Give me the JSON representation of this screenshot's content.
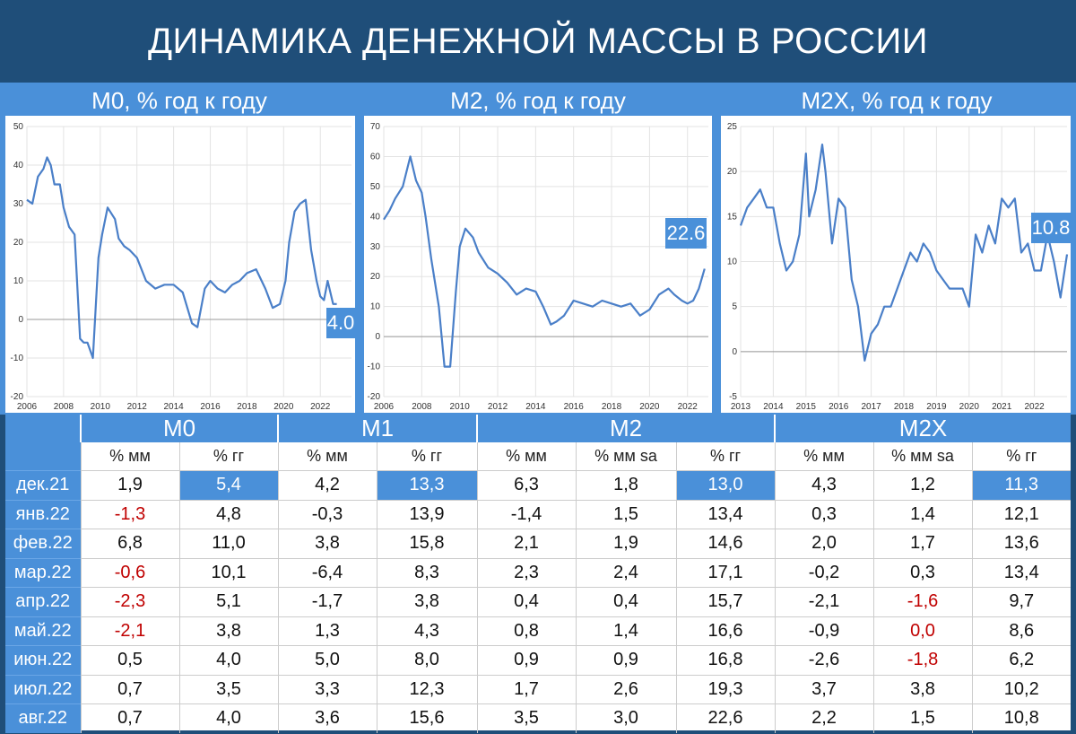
{
  "title": "ДИНАМИКА ДЕНЕЖНОЙ МАССЫ В РОССИИ",
  "colors": {
    "background": "#1f4e79",
    "accent": "#4a90d9",
    "line": "#4a7fc8",
    "negative": "#c00000"
  },
  "chart_data": [
    {
      "type": "line",
      "title": "M0, % год к году",
      "ylim": [
        -20,
        50
      ],
      "yticks": [
        -20,
        -10,
        0,
        10,
        20,
        30,
        40,
        50
      ],
      "xlim": [
        2006,
        2023.7
      ],
      "xticks": [
        2006,
        2008,
        2010,
        2012,
        2014,
        2016,
        2018,
        2020,
        2022
      ],
      "end_label": "4.0",
      "x": [
        2006.0,
        2006.3,
        2006.6,
        2006.9,
        2007.1,
        2007.3,
        2007.5,
        2007.8,
        2008.0,
        2008.3,
        2008.6,
        2008.9,
        2009.1,
        2009.3,
        2009.6,
        2009.9,
        2010.1,
        2010.4,
        2010.8,
        2011.0,
        2011.3,
        2011.6,
        2012.0,
        2012.5,
        2013.0,
        2013.5,
        2014.0,
        2014.5,
        2015.0,
        2015.3,
        2015.7,
        2016.0,
        2016.4,
        2016.8,
        2017.2,
        2017.6,
        2018.0,
        2018.5,
        2019.0,
        2019.4,
        2019.8,
        2020.1,
        2020.3,
        2020.6,
        2020.9,
        2021.2,
        2021.5,
        2021.8,
        2022.0,
        2022.2,
        2022.4,
        2022.7,
        2022.9
      ],
      "y": [
        31,
        30,
        37,
        39,
        42,
        40,
        35,
        35,
        29,
        24,
        22,
        -5,
        -6,
        -6,
        -10,
        16,
        22,
        29,
        26,
        21,
        19,
        18,
        16,
        10,
        8,
        9,
        9,
        7,
        -1,
        -2,
        8,
        10,
        8,
        7,
        9,
        10,
        12,
        13,
        8,
        3,
        4,
        10,
        20,
        28,
        30,
        31,
        18,
        10,
        6,
        5,
        10,
        4,
        4
      ]
    },
    {
      "type": "line",
      "title": "M2, % год к году",
      "ylim": [
        -20,
        70
      ],
      "yticks": [
        -20,
        -10,
        0,
        10,
        20,
        30,
        40,
        50,
        60,
        70
      ],
      "xlim": [
        2006,
        2023.1
      ],
      "xticks": [
        2006,
        2008,
        2010,
        2012,
        2014,
        2016,
        2018,
        2020,
        2022
      ],
      "end_label": "22.6",
      "x": [
        2006.0,
        2006.3,
        2006.6,
        2007.0,
        2007.4,
        2007.7,
        2008.0,
        2008.2,
        2008.5,
        2008.9,
        2009.2,
        2009.5,
        2009.8,
        2010.0,
        2010.3,
        2010.7,
        2011.0,
        2011.5,
        2012.0,
        2012.5,
        2013.0,
        2013.5,
        2014.0,
        2014.4,
        2014.8,
        2015.1,
        2015.5,
        2016.0,
        2016.5,
        2017.0,
        2017.5,
        2018.0,
        2018.5,
        2019.0,
        2019.5,
        2020.0,
        2020.5,
        2021.0,
        2021.3,
        2021.7,
        2022.0,
        2022.3,
        2022.6,
        2022.9
      ],
      "y": [
        39,
        42,
        46,
        50,
        60,
        52,
        48,
        40,
        26,
        10,
        -10,
        -10,
        15,
        30,
        36,
        33,
        28,
        23,
        21,
        18,
        14,
        16,
        15,
        10,
        4,
        5,
        7,
        12,
        11,
        10,
        12,
        11,
        10,
        11,
        7,
        9,
        14,
        16,
        14,
        12,
        11,
        12,
        16,
        22.6
      ]
    },
    {
      "type": "line",
      "title": "M2X, % год к году",
      "ylim": [
        -5,
        25
      ],
      "yticks": [
        -5,
        0,
        5,
        10,
        15,
        20,
        25
      ],
      "xlim": [
        2013,
        2023.0
      ],
      "xticks": [
        2013,
        2014,
        2015,
        2016,
        2017,
        2018,
        2019,
        2020,
        2021,
        2022
      ],
      "end_label": "10.8",
      "x": [
        2013.0,
        2013.2,
        2013.4,
        2013.6,
        2013.8,
        2014.0,
        2014.2,
        2014.4,
        2014.6,
        2014.8,
        2015.0,
        2015.1,
        2015.3,
        2015.5,
        2015.6,
        2015.8,
        2016.0,
        2016.2,
        2016.4,
        2016.6,
        2016.8,
        2017.0,
        2017.2,
        2017.4,
        2017.6,
        2017.8,
        2018.0,
        2018.2,
        2018.4,
        2018.6,
        2018.8,
        2019.0,
        2019.2,
        2019.4,
        2019.6,
        2019.8,
        2020.0,
        2020.2,
        2020.4,
        2020.6,
        2020.8,
        2021.0,
        2021.2,
        2021.4,
        2021.6,
        2021.8,
        2022.0,
        2022.2,
        2022.4,
        2022.6,
        2022.8,
        2023.0
      ],
      "y": [
        14,
        16,
        17,
        18,
        16,
        16,
        12,
        9,
        10,
        13,
        22,
        15,
        18,
        23,
        20,
        12,
        17,
        16,
        8,
        5,
        -1,
        2,
        3,
        5,
        5,
        7,
        9,
        11,
        10,
        12,
        11,
        9,
        8,
        7,
        7,
        7,
        5,
        13,
        11,
        14,
        12,
        17,
        16,
        17,
        11,
        12,
        9,
        9,
        13,
        10,
        6,
        10.8
      ]
    }
  ],
  "table": {
    "groups": [
      {
        "label": "M0",
        "span": 2
      },
      {
        "label": "M1",
        "span": 2
      },
      {
        "label": "M2",
        "span": 3
      },
      {
        "label": "M2X",
        "span": 3
      }
    ],
    "subheaders": [
      "% мм",
      "% гг",
      "% мм",
      "% гг",
      "% мм",
      "% мм sa",
      "% гг",
      "% мм",
      "% мм sa",
      "% гг"
    ],
    "rows": [
      {
        "label": "дек.21",
        "values": [
          "1,9",
          "5,4",
          "4,2",
          "13,3",
          "6,3",
          "1,8",
          "13,0",
          "4,3",
          "1,2",
          "11,3"
        ]
      },
      {
        "label": "янв.22",
        "values": [
          "-1,3",
          "4,8",
          "-0,3",
          "13,9",
          "-1,4",
          "1,5",
          "13,4",
          "0,3",
          "1,4",
          "12,1"
        ]
      },
      {
        "label": "фев.22",
        "values": [
          "6,8",
          "11,0",
          "3,8",
          "15,8",
          "2,1",
          "1,9",
          "14,6",
          "2,0",
          "1,7",
          "13,6"
        ]
      },
      {
        "label": "мар.22",
        "values": [
          "-0,6",
          "10,1",
          "-6,4",
          "8,3",
          "2,3",
          "2,4",
          "17,1",
          "-0,2",
          "0,3",
          "13,4"
        ]
      },
      {
        "label": "апр.22",
        "values": [
          "-2,3",
          "5,1",
          "-1,7",
          "3,8",
          "0,4",
          "0,4",
          "15,7",
          "-2,1",
          "-1,6",
          "9,7"
        ]
      },
      {
        "label": "май.22",
        "values": [
          "-2,1",
          "3,8",
          "1,3",
          "4,3",
          "0,8",
          "1,4",
          "16,6",
          "-0,9",
          "0,0",
          "8,6"
        ]
      },
      {
        "label": "июн.22",
        "values": [
          "0,5",
          "4,0",
          "5,0",
          "8,0",
          "0,9",
          "0,9",
          "16,8",
          "-2,6",
          "-1,8",
          "6,2"
        ]
      },
      {
        "label": "июл.22",
        "values": [
          "0,7",
          "3,5",
          "3,3",
          "12,3",
          "1,7",
          "2,6",
          "19,3",
          "3,7",
          "3,8",
          "10,2"
        ]
      },
      {
        "label": "авг.22",
        "values": [
          "0,7",
          "4,0",
          "3,6",
          "15,6",
          "3,5",
          "3,0",
          "22,6",
          "2,2",
          "1,5",
          "10,8"
        ]
      }
    ],
    "red_cells": [
      [
        1,
        0
      ],
      [
        3,
        0
      ],
      [
        4,
        0
      ],
      [
        5,
        0
      ],
      [
        4,
        8
      ],
      [
        5,
        8
      ],
      [
        6,
        8
      ]
    ],
    "highlight_first_row_cols": [
      1,
      3,
      6,
      9
    ]
  }
}
